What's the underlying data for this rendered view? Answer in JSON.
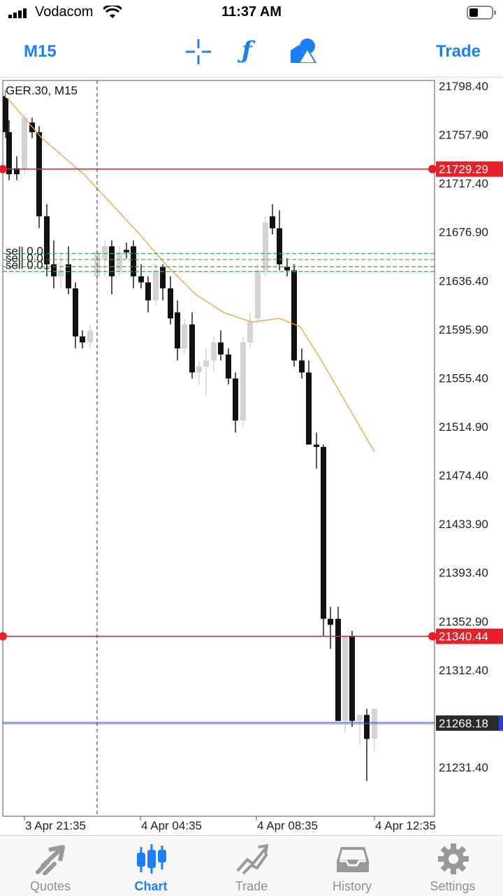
{
  "status_bar": {
    "carrier": "Vodacom",
    "time": "11:37 AM"
  },
  "toolbar": {
    "timeframe_label": "M15",
    "trade_label": "Trade",
    "icons": [
      "crosshair-icon",
      "function-icon",
      "objects-icon"
    ]
  },
  "chart": {
    "symbol_label": "GER.30, M15",
    "price_scale": [
      "21798.40",
      "21757.90",
      "21717.40",
      "21676.90",
      "21636.40",
      "21595.90",
      "21555.40",
      "21514.90",
      "21474.40",
      "21433.90",
      "21393.40",
      "21352.90",
      "21312.40",
      "21231.40"
    ],
    "time_labels": [
      "3 Apr 21:35",
      "4 Apr 04:35",
      "4 Apr 08:35",
      "4 Apr 12:35"
    ],
    "lines": [
      {
        "price": "21729.29",
        "color": "#e5202a"
      },
      {
        "price": "21340.44",
        "color": "#e5202a"
      }
    ],
    "current_price": "21268.18",
    "order_label": "sell 0.01",
    "colors": {
      "bull": "#d3d3d3",
      "bear": "#111111",
      "ma": "#f4a13c",
      "order": "#34a853",
      "ask": "#2a3fd6"
    }
  },
  "tabbar": {
    "items": [
      {
        "label": "Quotes",
        "icon": "quotes-icon"
      },
      {
        "label": "Chart",
        "icon": "chart-candles-icon"
      },
      {
        "label": "Trade",
        "icon": "trade-icon"
      },
      {
        "label": "History",
        "icon": "history-inbox-icon"
      },
      {
        "label": "Settings",
        "icon": "settings-gear-icon"
      }
    ]
  }
}
